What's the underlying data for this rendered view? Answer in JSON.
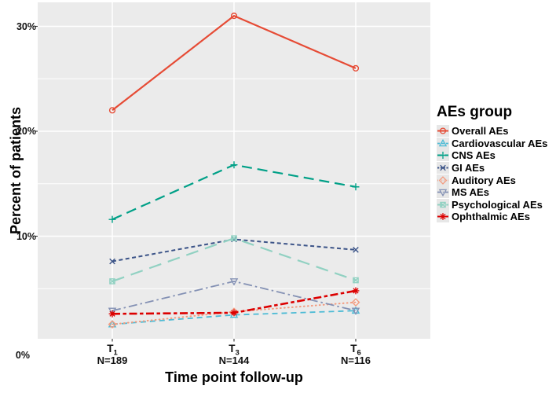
{
  "chart_data": {
    "type": "line",
    "title": "",
    "xlabel": "Time point follow-up",
    "ylabel": "Percent of patients",
    "legend_title": "AEs group",
    "legend_position": "right",
    "panel_background": "#EBEBEB",
    "grid": {
      "major": "#FFFFFF",
      "minor": "#FFFFFF",
      "minor_y_values": [
        5,
        15,
        25
      ]
    },
    "ylim": [
      0,
      32
    ],
    "x_categories": [
      {
        "label": "T",
        "sub": "1",
        "n_label": "N=189"
      },
      {
        "label": "T",
        "sub": "3",
        "n_label": "N=144"
      },
      {
        "label": "T",
        "sub": "6",
        "n_label": "N=116"
      }
    ],
    "y_ticks": [
      {
        "value": 0,
        "label": "0%"
      },
      {
        "value": 10,
        "label": "10%"
      },
      {
        "value": 20,
        "label": "20%"
      },
      {
        "value": 30,
        "label": "30%"
      }
    ],
    "series": [
      {
        "name": "Overall AEs",
        "color": "#E64B35",
        "marker": "open-circle",
        "linestyle": "solid",
        "line_width": 2.2,
        "values": [
          22,
          31,
          26
        ]
      },
      {
        "name": "Cardiovascular AEs",
        "color": "#4DBBD5",
        "marker": "open-triangle-up",
        "linestyle": "dashed",
        "line_width": 1.8,
        "values": [
          1.6,
          2.5,
          2.9
        ]
      },
      {
        "name": "CNS AEs",
        "color": "#00A087",
        "marker": "plus",
        "linestyle": "longdash",
        "line_width": 2.2,
        "values": [
          11.6,
          16.8,
          14.7
        ]
      },
      {
        "name": "GI AEs",
        "color": "#3C5488",
        "marker": "x-cross",
        "linestyle": "shortdash",
        "line_width": 2.0,
        "values": [
          7.6,
          9.7,
          8.7
        ]
      },
      {
        "name": "Auditory AEs",
        "color": "#F39B7F",
        "marker": "open-diamond",
        "linestyle": "dotted",
        "line_width": 2.0,
        "values": [
          1.6,
          2.8,
          3.7
        ]
      },
      {
        "name": "MS AEs",
        "color": "#8491B4",
        "marker": "open-triangle-down",
        "linestyle": "dashdot",
        "line_width": 1.8,
        "values": [
          2.9,
          5.7,
          2.9
        ]
      },
      {
        "name": "Psychological AEs",
        "color": "#91D1C2",
        "marker": "square-cross",
        "linestyle": "longdash2",
        "line_width": 2.2,
        "values": [
          5.7,
          9.8,
          5.8
        ]
      },
      {
        "name": "Ophthalmic AEs",
        "color": "#DC0000",
        "marker": "asterisk",
        "linestyle": "twodash",
        "line_width": 2.6,
        "values": [
          2.6,
          2.7,
          4.8
        ]
      }
    ]
  }
}
